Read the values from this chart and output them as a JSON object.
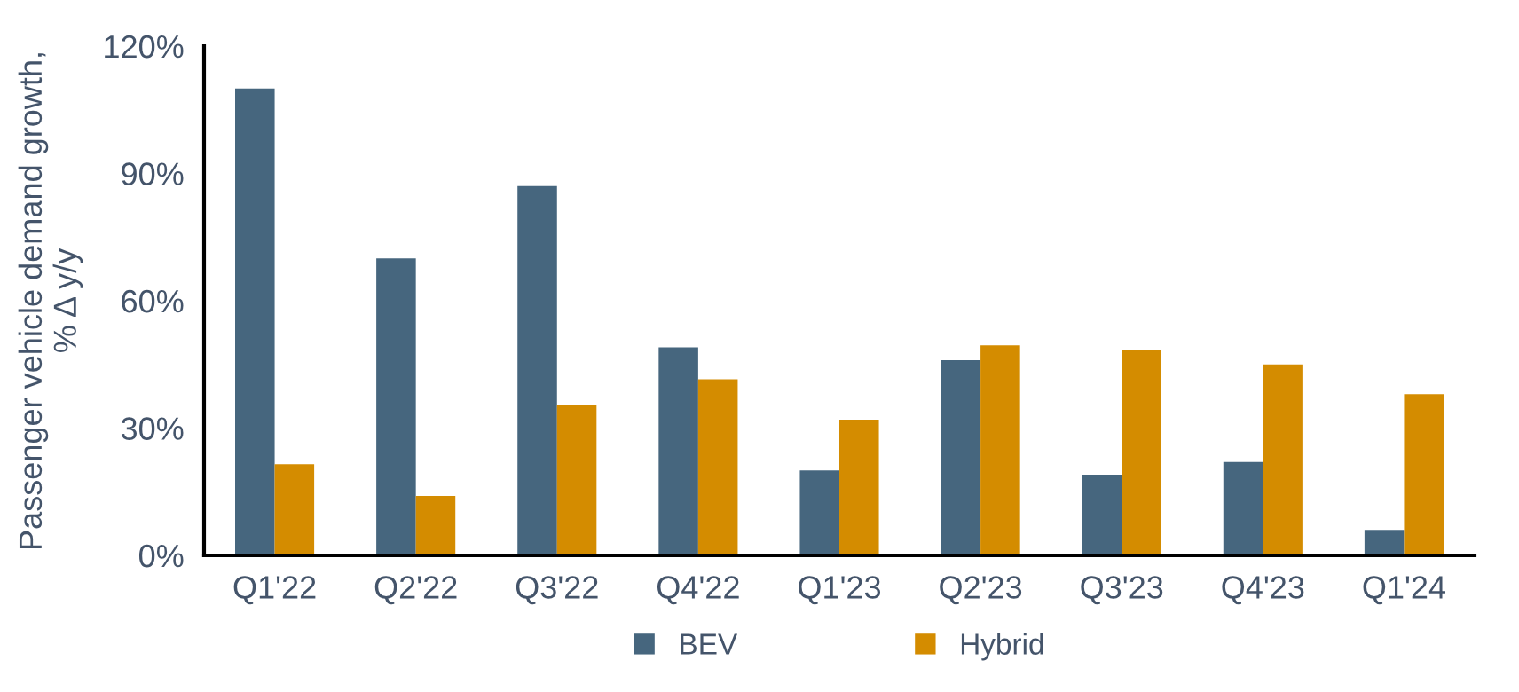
{
  "chart_data": {
    "type": "bar",
    "ylabel": "Passenger vehicle demand growth,\n% Δ y/y",
    "categories": [
      "Q1'22",
      "Q2'22",
      "Q3'22",
      "Q4'22",
      "Q1'23",
      "Q2'23",
      "Q3'23",
      "Q4'23",
      "Q1'24"
    ],
    "series": [
      {
        "name": "BEV",
        "color": "#46667e",
        "values": [
          110,
          70,
          87,
          49,
          20,
          46,
          19,
          22,
          6
        ]
      },
      {
        "name": "Hybrid",
        "color": "#d48c00",
        "values": [
          21.5,
          14,
          35.5,
          41.5,
          32,
          49.5,
          48.5,
          45,
          38
        ]
      }
    ],
    "ylim": [
      0,
      120
    ],
    "yticks": [
      {
        "value": 0,
        "label": "0%"
      },
      {
        "value": 30,
        "label": "30%"
      },
      {
        "value": 60,
        "label": "60%"
      },
      {
        "value": 90,
        "label": "90%"
      },
      {
        "value": 120,
        "label": "120%"
      }
    ],
    "grid": false,
    "legend": "bottom"
  }
}
